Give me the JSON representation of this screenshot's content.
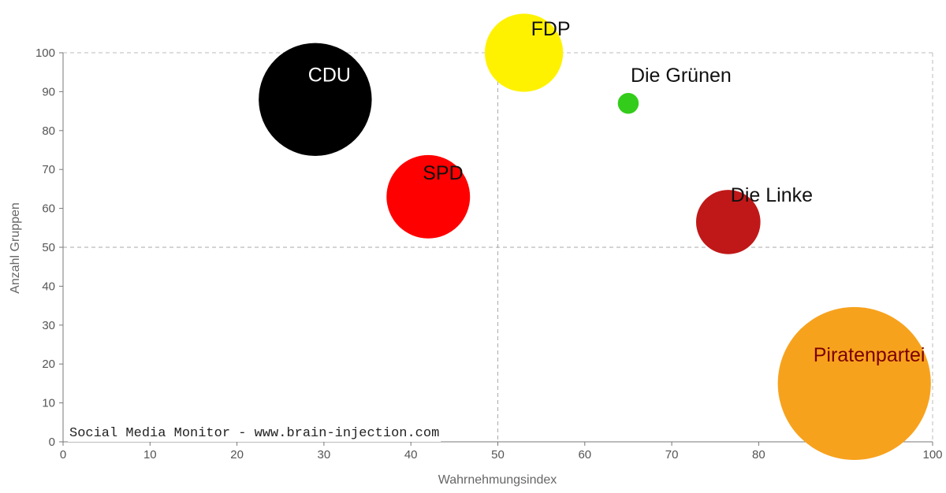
{
  "chart_data": {
    "type": "scatter",
    "title": "",
    "xlabel": "Wahrnehmungsindex",
    "ylabel": "Anzahl Gruppen",
    "xlim": [
      0,
      100
    ],
    "ylim": [
      0,
      100
    ],
    "xticks": [
      "0",
      "10",
      "20",
      "30",
      "40",
      "50",
      "60",
      "70",
      "80",
      "90",
      "100"
    ],
    "yticks": [
      "0",
      "10",
      "20",
      "30",
      "40",
      "50",
      "60",
      "70",
      "80",
      "90",
      "100"
    ],
    "reference_lines": {
      "x": 50,
      "y": 50
    },
    "grid": false,
    "points": [
      {
        "name": "CDU",
        "x": 29,
        "y": 88,
        "size": 13,
        "color": "#000000",
        "label_color": "#ffffff"
      },
      {
        "name": "FDP",
        "x": 53,
        "y": 100,
        "size": 9,
        "color": "#fff200",
        "label_color": "#111111"
      },
      {
        "name": "Die Grünen",
        "x": 65,
        "y": 87,
        "size": 2.4,
        "color": "#33cc1a",
        "label_color": "#111111"
      },
      {
        "name": "SPD",
        "x": 42,
        "y": 63,
        "size": 9.6,
        "color": "#ff0000",
        "label_color": "#111111"
      },
      {
        "name": "Die Linke",
        "x": 76.5,
        "y": 56.5,
        "size": 7.4,
        "color": "#c01818",
        "label_color": "#111111"
      },
      {
        "name": "Piratenpartei",
        "x": 91,
        "y": 15,
        "size": 17.6,
        "color": "#f7a21d",
        "label_color": "#7a0000"
      }
    ]
  },
  "watermark": "Social Media Monitor - www.brain-injection.com"
}
